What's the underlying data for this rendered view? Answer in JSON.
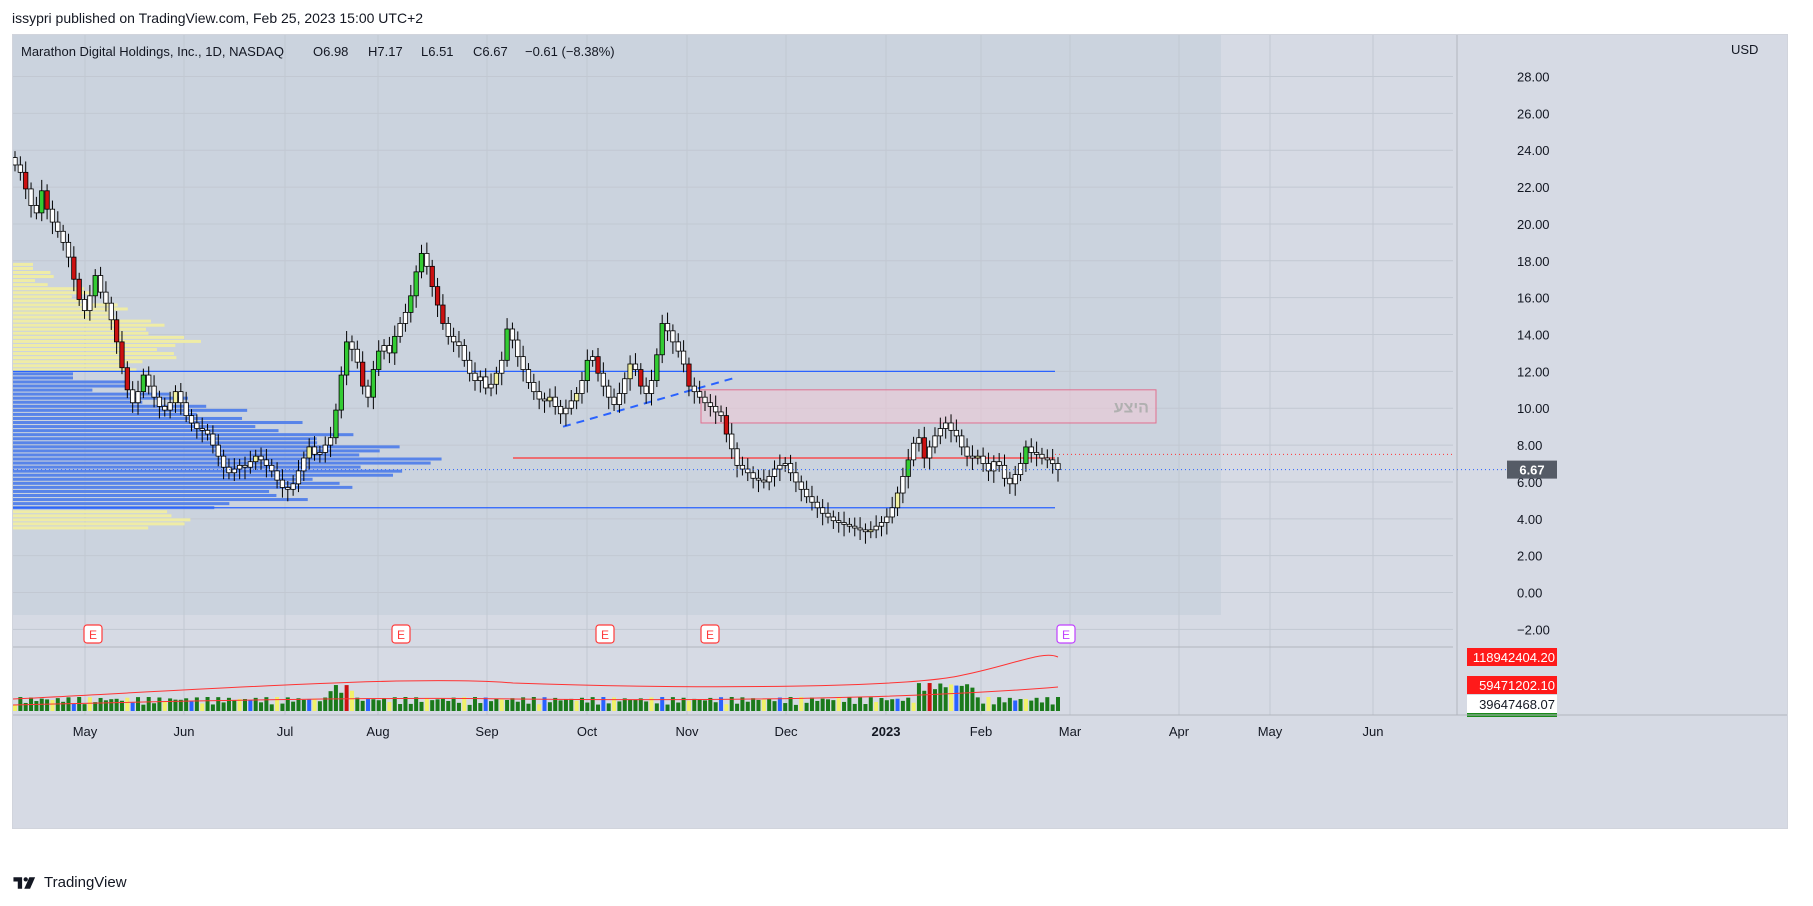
{
  "publisher": "issypri published on TradingView.com, Feb 25, 2023 15:00 UTC+2",
  "brand": "TradingView",
  "colors": {
    "bg_pane": "#cdd4de",
    "bg_right": "#d6dae4",
    "grid": "#c2c8d2",
    "up": "#33cc33",
    "up_alt": "#f1f1a0",
    "down": "#cc1111",
    "neutral": "#ffffff",
    "line_blue": "#2962ff",
    "line_red": "#ff3333",
    "zone": "#f0c8d6",
    "vp_blue": "#4b7bea",
    "vp_yellow": "#f3eea0"
  },
  "chart_data": {
    "type": "candlestick",
    "title": "Marathon Digital Holdings, Inc., 1D, NASDAQ",
    "ohlc_label": {
      "o": "O6.98",
      "h": "H7.17",
      "l": "L6.51",
      "c": "C6.67",
      "chg": "−0.61 (−8.38%)"
    },
    "currency": "USD",
    "ylim": [
      -3,
      30
    ],
    "y_ticks": [
      "28.00",
      "26.00",
      "24.00",
      "22.00",
      "20.00",
      "18.00",
      "16.00",
      "14.00",
      "12.00",
      "10.00",
      "8.00",
      "6.00",
      "4.00",
      "2.00",
      "0.00",
      "−2.00"
    ],
    "x_ticks": [
      "May",
      "Jun",
      "Jul",
      "Aug",
      "Sep",
      "Oct",
      "Nov",
      "Dec",
      "2023",
      "Feb",
      "Mar",
      "Apr",
      "May",
      "Jun"
    ],
    "last_price": "6.67",
    "horizontal_levels": [
      {
        "value": 12.0,
        "color": "#2962ff"
      },
      {
        "value": 4.6,
        "color": "#2962ff"
      },
      {
        "value": 7.3,
        "color": "#ff3333"
      }
    ],
    "zone": {
      "label": "היצע",
      "low": 9.2,
      "high": 11.0,
      "start": "Nov",
      "end": "Mar"
    },
    "trendline": {
      "from": {
        "date": "Sep 20",
        "value": 9.0
      },
      "to": {
        "date": "Nov 15",
        "value": 11.7
      }
    },
    "closes": [
      23.2,
      22.8,
      21.9,
      21.0,
      20.6,
      21.8,
      20.8,
      20.1,
      19.6,
      19.0,
      18.2,
      17.0,
      15.9,
      15.3,
      16.1,
      17.2,
      16.3,
      15.7,
      14.8,
      13.6,
      12.2,
      11.0,
      10.3,
      10.9,
      11.8,
      11.2,
      10.6,
      10.1,
      9.9,
      10.3,
      10.9,
      10.3,
      9.6,
      9.2,
      8.9,
      8.8,
      8.6,
      8.0,
      7.4,
      6.8,
      6.5,
      6.7,
      6.9,
      6.8,
      7.1,
      7.4,
      7.2,
      6.9,
      6.6,
      6.1,
      5.7,
      5.6,
      5.9,
      6.6,
      7.3,
      7.9,
      7.5,
      7.6,
      8.0,
      8.4,
      9.9,
      11.8,
      13.6,
      13.2,
      12.5,
      11.2,
      10.6,
      12.1,
      13.1,
      13.4,
      13.0,
      13.9,
      14.6,
      15.2,
      16.1,
      17.4,
      18.4,
      17.7,
      16.6,
      15.6,
      14.6,
      13.9,
      13.6,
      13.4,
      12.6,
      11.9,
      11.5,
      11.7,
      11.1,
      11.3,
      11.9,
      12.6,
      14.3,
      13.7,
      12.8,
      12.1,
      11.4,
      10.9,
      10.5,
      10.4,
      10.6,
      10.1,
      9.7,
      10.0,
      10.4,
      10.8,
      11.5,
      12.6,
      12.8,
      11.9,
      11.2,
      10.6,
      10.2,
      10.8,
      11.6,
      12.4,
      12.1,
      11.2,
      10.8,
      11.5,
      12.9,
      14.6,
      14.2,
      13.6,
      13.1,
      12.4,
      11.2,
      10.9,
      10.6,
      10.3,
      10.1,
      9.8,
      9.6,
      8.6,
      7.8,
      6.9,
      6.7,
      6.5,
      6.2,
      6.1,
      6.0,
      6.3,
      6.7,
      6.9,
      7.0,
      6.5,
      6.0,
      5.6,
      5.2,
      4.9,
      4.6,
      4.3,
      4.1,
      3.9,
      3.8,
      3.7,
      3.6,
      3.5,
      3.4,
      3.3,
      3.4,
      3.6,
      3.8,
      4.1,
      4.6,
      5.4,
      6.3,
      7.2,
      8.1,
      8.4,
      7.3,
      7.9,
      8.5,
      8.9,
      9.2,
      8.8,
      8.5,
      7.9,
      7.4,
      7.3,
      7.4,
      7.0,
      6.6,
      7.1,
      6.9,
      6.2,
      5.9,
      6.4,
      7.0,
      7.9,
      7.6,
      7.5,
      7.3,
      7.2,
      7.0,
      6.67
    ],
    "volume_pane": {
      "labels": [
        "118942404.20",
        "59471202.10",
        "39647468.07"
      ],
      "label_colors": [
        "#ff0000",
        "#ff0000",
        "#ffffff"
      ]
    },
    "earnings_markers": [
      "May",
      "Aug",
      "Oct",
      "Nov",
      "Feb"
    ],
    "earnings_label": "E",
    "volume_profile": true
  }
}
